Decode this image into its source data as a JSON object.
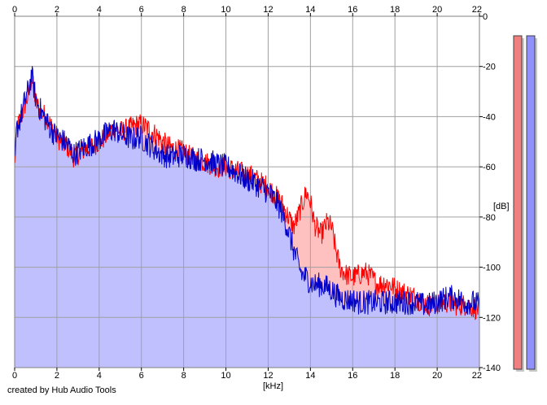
{
  "chart_data": {
    "type": "area",
    "credit": "created by Hub Audio Tools",
    "xlabel": "[kHz]",
    "ylabel": "[dB]",
    "xlim": [
      0,
      22
    ],
    "ylim": [
      -140,
      0
    ],
    "x_ticks": [
      0,
      2,
      4,
      6,
      8,
      10,
      12,
      14,
      16,
      18,
      20,
      22
    ],
    "y_ticks": [
      0,
      -20,
      -40,
      -60,
      -80,
      -100,
      -120,
      -140
    ],
    "grid": true,
    "colors": {
      "plot_background": "#ffffff",
      "grid": "#a0a0a0",
      "series_1_line": "#ff0000",
      "series_1_fill": "#ffc0c0",
      "series_2_line": "#0000c8",
      "series_2_fill": "#c0c0ff",
      "meter_1": "#f08080",
      "meter_2": "#9090ff"
    },
    "series": [
      {
        "color": "#ff0000",
        "points": [
          [
            0,
            -60
          ],
          [
            0.1,
            -45
          ],
          [
            0.3,
            -40
          ],
          [
            0.5,
            -35
          ],
          [
            0.7,
            -30
          ],
          [
            0.8,
            -24
          ],
          [
            1.0,
            -34
          ],
          [
            1.2,
            -38
          ],
          [
            1.5,
            -40
          ],
          [
            1.8,
            -45
          ],
          [
            2.0,
            -48
          ],
          [
            2.2,
            -50
          ],
          [
            2.5,
            -52
          ],
          [
            2.8,
            -56
          ],
          [
            3.0,
            -55
          ],
          [
            3.3,
            -53
          ],
          [
            3.6,
            -52
          ],
          [
            4.0,
            -50
          ],
          [
            4.3,
            -48
          ],
          [
            4.7,
            -44
          ],
          [
            5.0,
            -46
          ],
          [
            5.3,
            -45
          ],
          [
            5.6,
            -44
          ],
          [
            5.9,
            -43
          ],
          [
            6.2,
            -44
          ],
          [
            6.5,
            -46
          ],
          [
            6.8,
            -48
          ],
          [
            7.0,
            -50
          ],
          [
            7.3,
            -52
          ],
          [
            7.6,
            -53
          ],
          [
            8.0,
            -54
          ],
          [
            8.3,
            -56
          ],
          [
            8.6,
            -57
          ],
          [
            9.0,
            -58
          ],
          [
            9.3,
            -59
          ],
          [
            9.6,
            -60
          ],
          [
            10.0,
            -60
          ],
          [
            10.3,
            -61
          ],
          [
            10.6,
            -62
          ],
          [
            11.0,
            -63
          ],
          [
            11.3,
            -64
          ],
          [
            11.6,
            -66
          ],
          [
            12.0,
            -68
          ],
          [
            12.3,
            -71
          ],
          [
            12.6,
            -74
          ],
          [
            12.9,
            -79
          ],
          [
            13.2,
            -84
          ],
          [
            13.4,
            -80
          ],
          [
            13.6,
            -75
          ],
          [
            13.8,
            -70
          ],
          [
            14.0,
            -74
          ],
          [
            14.2,
            -83
          ],
          [
            14.5,
            -87
          ],
          [
            14.8,
            -82
          ],
          [
            15.0,
            -84
          ],
          [
            15.2,
            -93
          ],
          [
            15.4,
            -100
          ],
          [
            15.7,
            -103
          ],
          [
            16.0,
            -104
          ],
          [
            16.3,
            -103
          ],
          [
            16.6,
            -102
          ],
          [
            16.9,
            -104
          ],
          [
            17.2,
            -107
          ],
          [
            17.5,
            -106
          ],
          [
            17.8,
            -107
          ],
          [
            18.1,
            -109
          ],
          [
            18.4,
            -110
          ],
          [
            18.7,
            -111
          ],
          [
            19.0,
            -112
          ],
          [
            19.3,
            -114
          ],
          [
            19.6,
            -115
          ],
          [
            19.9,
            -115
          ],
          [
            20.2,
            -114
          ],
          [
            20.5,
            -114
          ],
          [
            20.8,
            -115
          ],
          [
            21.1,
            -115
          ],
          [
            21.4,
            -115
          ],
          [
            21.7,
            -116
          ],
          [
            22,
            -117
          ]
        ]
      },
      {
        "color": "#0000c8",
        "points": [
          [
            0,
            -60
          ],
          [
            0.1,
            -45
          ],
          [
            0.3,
            -40
          ],
          [
            0.5,
            -33
          ],
          [
            0.7,
            -28
          ],
          [
            0.8,
            -23
          ],
          [
            1.0,
            -33
          ],
          [
            1.2,
            -37
          ],
          [
            1.5,
            -42
          ],
          [
            1.8,
            -46
          ],
          [
            2.0,
            -48
          ],
          [
            2.2,
            -49
          ],
          [
            2.5,
            -51
          ],
          [
            2.8,
            -55
          ],
          [
            3.0,
            -54
          ],
          [
            3.3,
            -52
          ],
          [
            3.6,
            -51
          ],
          [
            4.0,
            -49
          ],
          [
            4.3,
            -47
          ],
          [
            4.7,
            -45
          ],
          [
            5.0,
            -47
          ],
          [
            5.3,
            -48
          ],
          [
            5.6,
            -49
          ],
          [
            5.9,
            -48
          ],
          [
            6.2,
            -50
          ],
          [
            6.5,
            -52
          ],
          [
            6.8,
            -54
          ],
          [
            7.0,
            -55
          ],
          [
            7.3,
            -56
          ],
          [
            7.6,
            -56
          ],
          [
            8.0,
            -55
          ],
          [
            8.3,
            -56
          ],
          [
            8.6,
            -57
          ],
          [
            9.0,
            -57
          ],
          [
            9.3,
            -58
          ],
          [
            9.6,
            -59
          ],
          [
            10.0,
            -60
          ],
          [
            10.3,
            -61
          ],
          [
            10.6,
            -63
          ],
          [
            11.0,
            -65
          ],
          [
            11.3,
            -66
          ],
          [
            11.6,
            -68
          ],
          [
            12.0,
            -70
          ],
          [
            12.3,
            -73
          ],
          [
            12.6,
            -77
          ],
          [
            12.9,
            -84
          ],
          [
            13.2,
            -93
          ],
          [
            13.4,
            -98
          ],
          [
            13.6,
            -103
          ],
          [
            13.8,
            -104
          ],
          [
            14.0,
            -106
          ],
          [
            14.2,
            -107
          ],
          [
            14.5,
            -107
          ],
          [
            14.8,
            -108
          ],
          [
            15.0,
            -109
          ],
          [
            15.2,
            -111
          ],
          [
            15.4,
            -112
          ],
          [
            15.7,
            -113
          ],
          [
            16.0,
            -113
          ],
          [
            16.3,
            -114
          ],
          [
            16.6,
            -114
          ],
          [
            16.9,
            -114
          ],
          [
            17.2,
            -114
          ],
          [
            17.5,
            -114
          ],
          [
            17.8,
            -114
          ],
          [
            18.1,
            -114
          ],
          [
            18.4,
            -114
          ],
          [
            18.7,
            -114
          ],
          [
            19.0,
            -114
          ],
          [
            19.3,
            -115
          ],
          [
            19.6,
            -115
          ],
          [
            19.9,
            -114
          ],
          [
            20.2,
            -113
          ],
          [
            20.5,
            -112
          ],
          [
            20.8,
            -112
          ],
          [
            21.1,
            -113
          ],
          [
            21.4,
            -114
          ],
          [
            21.7,
            -114
          ],
          [
            22,
            -115
          ]
        ]
      }
    ],
    "legend": "none"
  }
}
